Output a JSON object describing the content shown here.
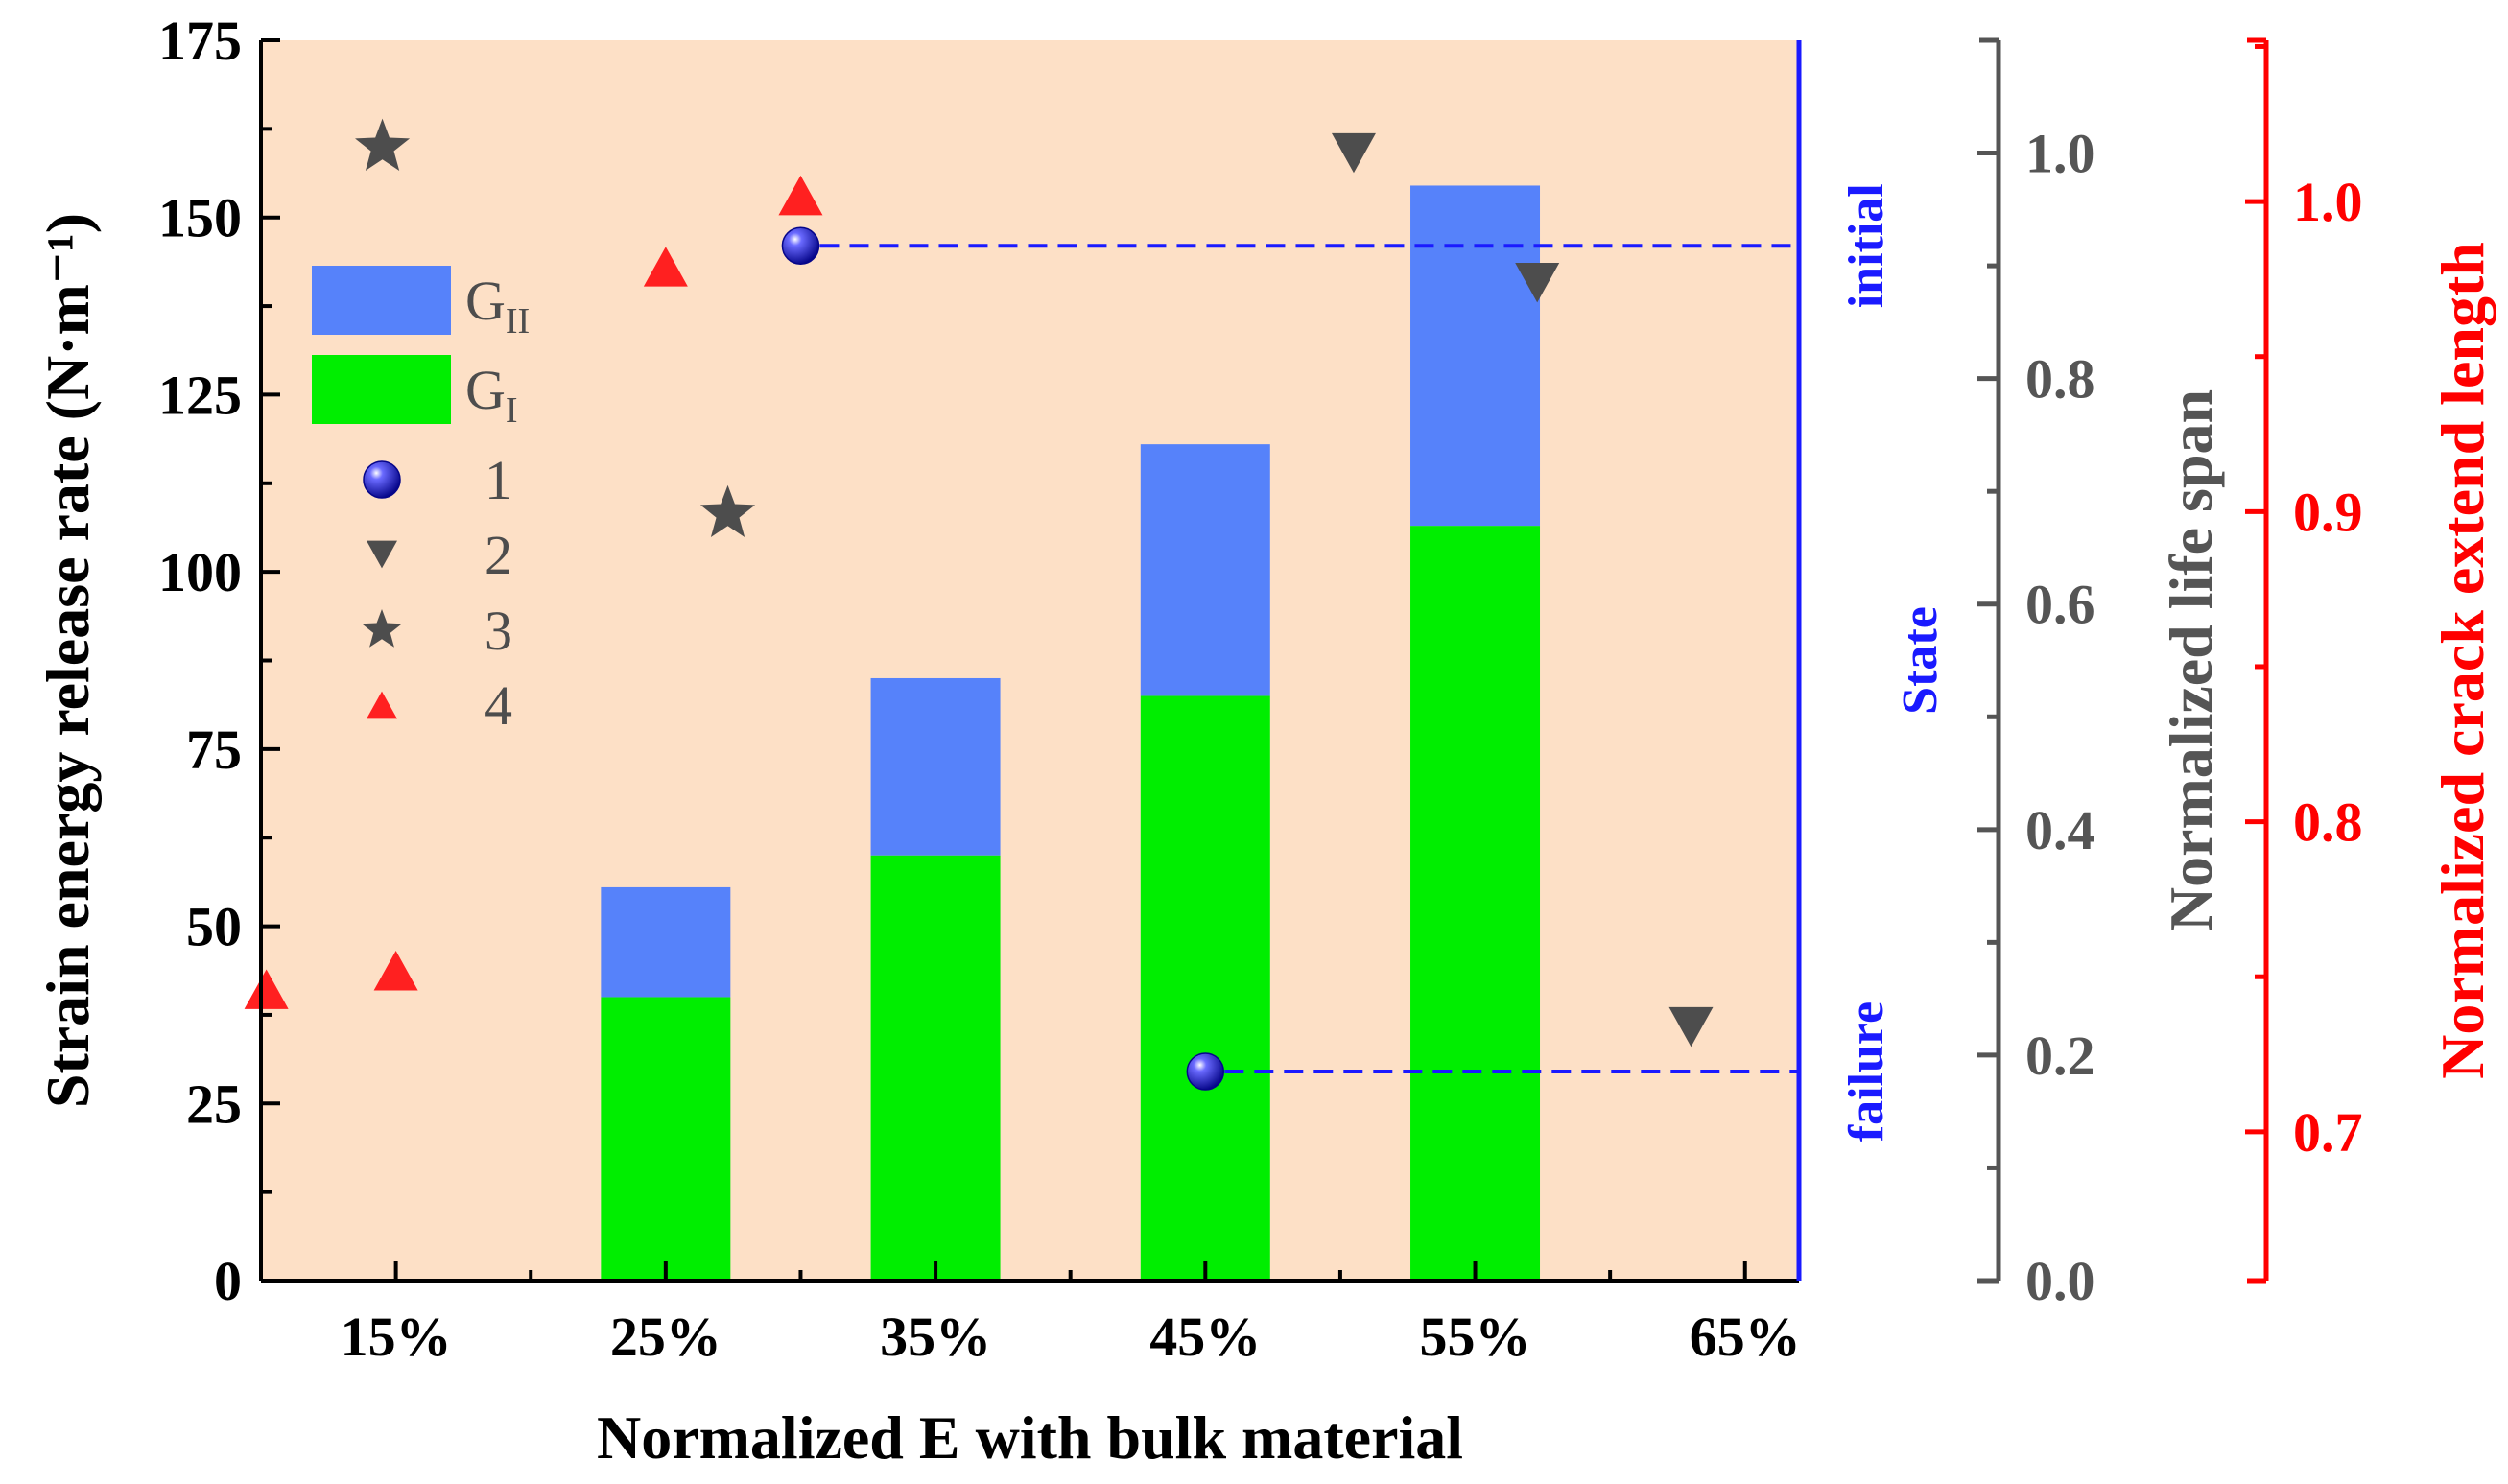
{
  "chart_data": {
    "type": "bar",
    "xlabel": "Normalized E with bulk material",
    "ylabel": "Strain energy release rate  (N·m⁻¹)",
    "categories": [
      "15%",
      "25%",
      "35%",
      "45%",
      "55%",
      "65%"
    ],
    "category_values": [
      15,
      25,
      35,
      45,
      55,
      65
    ],
    "xlim": [
      10,
      67
    ],
    "ylim": [
      0,
      175
    ],
    "yticks": [
      0,
      25,
      50,
      75,
      100,
      125,
      150,
      175
    ],
    "ytick_labels": [
      "0",
      "25",
      "50",
      "75",
      "100",
      "125",
      "150",
      "175"
    ],
    "background_color": "#fde0c6",
    "bar_width": 4.8,
    "stacked_series": [
      {
        "name": "G_I",
        "color": "#00ee00",
        "x": [
          25,
          35,
          45,
          55
        ],
        "values": [
          40,
          60,
          82.5,
          106.5
        ]
      },
      {
        "name": "G_II",
        "color": "#5682fa",
        "x": [
          25,
          35,
          45,
          55
        ],
        "values": [
          15.5,
          25,
          35.5,
          48
        ]
      }
    ],
    "state_axis": {
      "label": "State",
      "color": "#1a1aff",
      "levels": [
        {
          "label": "initial",
          "y": 146
        },
        {
          "label": "failure",
          "y": 29.5
        }
      ]
    },
    "life_span_axis": {
      "label": "Normalized life span",
      "color": "#555555",
      "ylim": [
        0,
        1.1
      ],
      "ticks": [
        0.0,
        0.2,
        0.4,
        0.6,
        0.8,
        1.0
      ],
      "tick_labels": [
        "0.0",
        "0.2",
        "0.4",
        "0.6",
        "0.8",
        "1.0"
      ]
    },
    "crack_axis": {
      "label": "Normalized crack extend length",
      "color": "#ff0000",
      "ylim": [
        0.652,
        1.052
      ],
      "ticks": [
        0.7,
        0.8,
        0.9,
        1.0
      ],
      "tick_labels": [
        "0.7",
        "0.8",
        "0.9",
        "1.0"
      ]
    },
    "scatter_series": [
      {
        "name": "1",
        "marker": "sphere",
        "color": "#1212e0",
        "axis": "state",
        "points": [
          {
            "x": 30,
            "y": 146
          },
          {
            "x": 45,
            "y": 29.5
          }
        ]
      },
      {
        "name": "2",
        "marker": "triangle-down",
        "color": "#4d4d4d",
        "axis": "life_span",
        "points": [
          {
            "x": 50.5,
            "y": 1.0
          },
          {
            "x": 57.3,
            "y": 0.885
          },
          {
            "x": 63,
            "y": 0.225
          }
        ]
      },
      {
        "name": "3",
        "marker": "star",
        "color": "#4d4d4d",
        "axis": "life_span",
        "points": [
          {
            "x": 14.5,
            "y": 1.005
          },
          {
            "x": 27.3,
            "y": 0.68
          }
        ]
      },
      {
        "name": "4",
        "marker": "triangle-up",
        "color": "#ff2020",
        "axis": "crack",
        "points": [
          {
            "x": 10.2,
            "y": 0.746
          },
          {
            "x": 15,
            "y": 0.752
          },
          {
            "x": 25,
            "y": 0.979
          },
          {
            "x": 30,
            "y": 1.002
          }
        ]
      }
    ],
    "legend": {
      "position": "upper-left",
      "entries": [
        {
          "label": "G",
          "subscript": "II",
          "type": "bar",
          "color": "#5682fa"
        },
        {
          "label": "G",
          "subscript": "I",
          "type": "bar",
          "color": "#00ee00"
        },
        {
          "label": "1",
          "type": "sphere",
          "color": "#1212e0"
        },
        {
          "label": "2",
          "type": "triangle-down",
          "color": "#4d4d4d"
        },
        {
          "label": "3",
          "type": "star",
          "color": "#4d4d4d"
        },
        {
          "label": "4",
          "type": "triangle-up",
          "color": "#ff2020"
        }
      ]
    }
  }
}
